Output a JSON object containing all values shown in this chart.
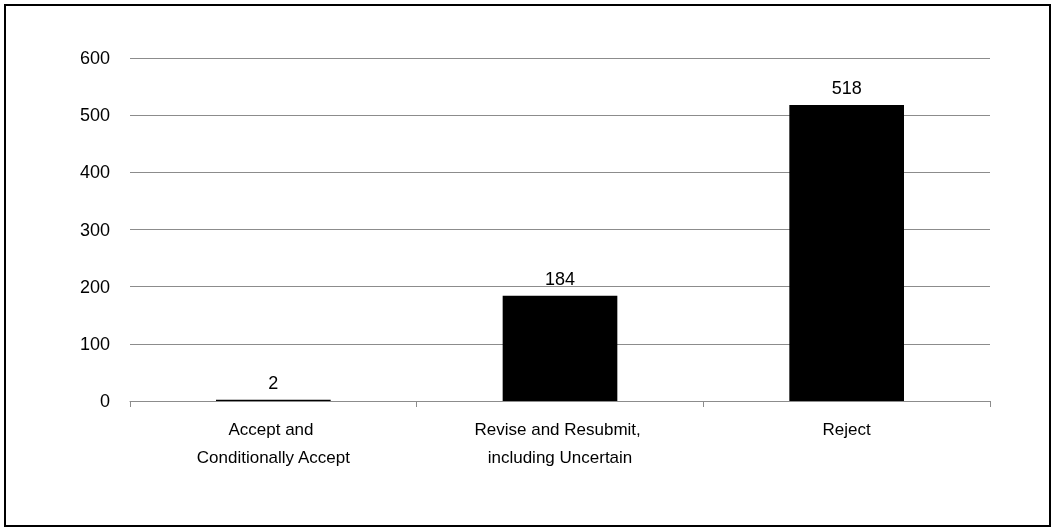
{
  "chart_data": {
    "type": "bar",
    "categories": [
      "Accept and Conditionally Accept",
      "Revise and Resubmit, including Uncertain",
      "Reject"
    ],
    "values": [
      2,
      184,
      518
    ],
    "color": "#000000",
    "ylim": [
      0,
      600
    ],
    "yticks": [
      0,
      100,
      200,
      300,
      400,
      500,
      600
    ],
    "grid": "y",
    "data_labels": true
  }
}
